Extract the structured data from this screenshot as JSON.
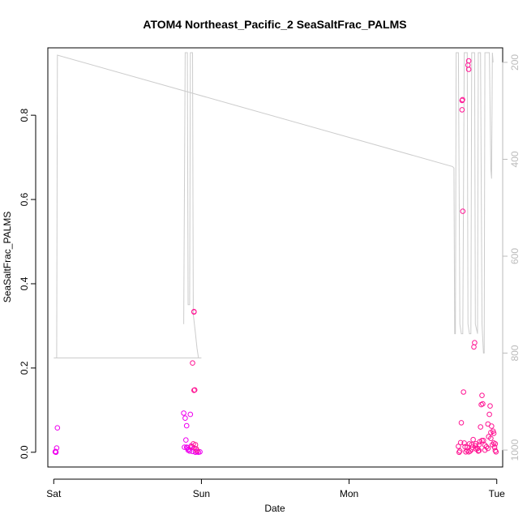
{
  "chart_data": {
    "type": "scatter",
    "title": "ATOM4 Northeast_Pacific_2 SeaSaltFrac_PALMS",
    "xlabel": "Date",
    "ylabel": "SeaSaltFrac_PALMS",
    "x_ticks": [
      "Sat",
      "Sun",
      "Mon",
      "Tue"
    ],
    "x_tick_values": [
      0,
      1,
      2,
      3
    ],
    "xlim": [
      -0.04,
      3.04
    ],
    "ylim": [
      -0.035,
      0.96
    ],
    "y_ticks": [
      0.0,
      0.2,
      0.4,
      0.6,
      0.8
    ],
    "y_tick_labels": [
      "0.0",
      "0.2",
      "0.4",
      "0.6",
      "0.8"
    ],
    "y2_ticks": [
      200,
      400,
      600,
      800,
      1000
    ],
    "y2lim": [
      1035,
      170
    ],
    "y2_reversed": true,
    "grid": false,
    "colors": {
      "points_primary": "#ff1493",
      "points_secondary": "#ee00ee",
      "pressure_line": "#cccccc",
      "axis": "#000000",
      "right_axis": "#bbbbbb"
    },
    "series": [
      {
        "type": "scatter",
        "axis": "left",
        "color": "#ee00ee",
        "points": [
          [
            0.01,
            0.001
          ],
          [
            0.015,
            0.0
          ],
          [
            0.02,
            0.01
          ],
          [
            0.025,
            0.058
          ],
          [
            0.012,
            0.002
          ],
          [
            0.88,
            0.093
          ],
          [
            0.89,
            0.081
          ],
          [
            0.9,
            0.063
          ],
          [
            0.905,
            0.01
          ],
          [
            0.9,
            0.012
          ],
          [
            0.91,
            0.005
          ],
          [
            0.92,
            0.003
          ],
          [
            0.93,
            0.015
          ],
          [
            0.94,
            0.002
          ],
          [
            0.95,
            0.01
          ],
          [
            0.96,
            0.0
          ],
          [
            0.97,
            0.001
          ],
          [
            0.98,
            0.0
          ],
          [
            0.99,
            0.001
          ],
          [
            0.885,
            0.012
          ],
          [
            0.895,
            0.029
          ],
          [
            0.915,
            0.007
          ],
          [
            0.925,
            0.09
          ]
        ]
      },
      {
        "type": "scatter",
        "axis": "left",
        "color": "#ff1493",
        "points": [
          [
            0.95,
            0.333
          ],
          [
            0.95,
            0.334
          ],
          [
            0.94,
            0.212
          ],
          [
            0.95,
            0.147
          ],
          [
            0.955,
            0.148
          ],
          [
            0.935,
            0.013
          ],
          [
            0.945,
            0.02
          ],
          [
            0.96,
            0.018
          ],
          [
            0.965,
            0.008
          ],
          [
            0.97,
            0.004
          ],
          [
            2.74,
            0.014
          ],
          [
            2.745,
            0.0
          ],
          [
            2.75,
            0.003
          ],
          [
            2.755,
            0.023
          ],
          [
            2.76,
            0.07
          ],
          [
            2.765,
            0.835
          ],
          [
            2.765,
            0.813
          ],
          [
            2.768,
            0.837
          ],
          [
            2.77,
            0.572
          ],
          [
            2.775,
            0.143
          ],
          [
            2.78,
            0.022
          ],
          [
            2.785,
            0.013
          ],
          [
            2.79,
            0.001
          ],
          [
            2.8,
            0.004
          ],
          [
            2.805,
            0.919
          ],
          [
            2.81,
            0.929
          ],
          [
            2.81,
            0.909
          ],
          [
            2.815,
            0.02
          ],
          [
            2.82,
            0.003
          ],
          [
            2.83,
            0.007
          ],
          [
            2.835,
            0.012
          ],
          [
            2.84,
            0.03
          ],
          [
            2.845,
            0.25
          ],
          [
            2.85,
            0.26
          ],
          [
            2.855,
            0.015
          ],
          [
            2.86,
            0.02
          ],
          [
            2.87,
            0.009
          ],
          [
            2.875,
            0.003
          ],
          [
            2.88,
            0.018
          ],
          [
            2.885,
            0.025
          ],
          [
            2.89,
            0.06
          ],
          [
            2.895,
            0.113
          ],
          [
            2.9,
            0.135
          ],
          [
            2.905,
            0.115
          ],
          [
            2.91,
            0.028
          ],
          [
            2.92,
            0.005
          ],
          [
            2.93,
            0.013
          ],
          [
            2.94,
            0.067
          ],
          [
            2.945,
            0.037
          ],
          [
            2.95,
            0.09
          ],
          [
            2.955,
            0.11
          ],
          [
            2.96,
            0.047
          ],
          [
            2.965,
            0.062
          ],
          [
            2.97,
            0.018
          ],
          [
            2.975,
            0.05
          ],
          [
            2.98,
            0.022
          ],
          [
            2.985,
            0.012
          ],
          [
            2.99,
            0.004
          ],
          [
            2.995,
            0.001
          ],
          [
            2.8,
            0.012
          ],
          [
            2.81,
            0.001
          ],
          [
            2.83,
            0.018
          ],
          [
            2.86,
            0.008
          ],
          [
            2.88,
            0.004
          ],
          [
            2.9,
            0.028
          ],
          [
            2.92,
            0.017
          ],
          [
            2.94,
            0.009
          ],
          [
            2.96,
            0.033
          ],
          [
            2.98,
            0.045
          ],
          [
            2.99,
            0.02
          ]
        ]
      },
      {
        "type": "line",
        "axis": "right",
        "color": "#cccccc",
        "points": [
          [
            0.0,
            810
          ],
          [
            0.02,
            810
          ],
          [
            0.025,
            185
          ],
          [
            2.7,
            415
          ],
          [
            2.71,
            418
          ],
          [
            2.715,
            760
          ],
          [
            2.72,
            760
          ],
          [
            2.725,
            180
          ],
          [
            2.73,
            180
          ],
          [
            2.74,
            180
          ],
          [
            2.75,
            740
          ],
          [
            2.76,
            760
          ],
          [
            2.77,
            760
          ],
          [
            2.78,
            180
          ],
          [
            2.79,
            180
          ],
          [
            2.8,
            180
          ],
          [
            2.805,
            740
          ],
          [
            2.815,
            760
          ],
          [
            2.825,
            760
          ],
          [
            2.83,
            180
          ],
          [
            2.84,
            180
          ],
          [
            2.85,
            180
          ],
          [
            2.855,
            740
          ],
          [
            2.87,
            760
          ],
          [
            2.875,
            180
          ],
          [
            2.885,
            180
          ],
          [
            2.89,
            180
          ],
          [
            2.9,
            740
          ],
          [
            2.91,
            800
          ],
          [
            2.915,
            800
          ],
          [
            2.92,
            180
          ],
          [
            2.94,
            180
          ],
          [
            2.95,
            180
          ],
          [
            2.96,
            420
          ],
          [
            2.965,
            440
          ],
          [
            2.97,
            180
          ],
          [
            2.975,
            200
          ]
        ]
      },
      {
        "type": "line",
        "axis": "right",
        "color": "#cccccc",
        "points": [
          [
            0.02,
            810
          ],
          [
            1.0,
            810
          ]
        ]
      },
      {
        "type": "line",
        "axis": "right",
        "color": "#cccccc",
        "points": [
          [
            0.88,
            740
          ],
          [
            0.89,
            180
          ],
          [
            0.905,
            180
          ],
          [
            0.91,
            700
          ],
          [
            0.92,
            700
          ],
          [
            0.925,
            180
          ],
          [
            0.94,
            180
          ],
          [
            0.945,
            720
          ],
          [
            0.96,
            760
          ],
          [
            0.97,
            790
          ],
          [
            0.98,
            810
          ]
        ]
      }
    ]
  }
}
